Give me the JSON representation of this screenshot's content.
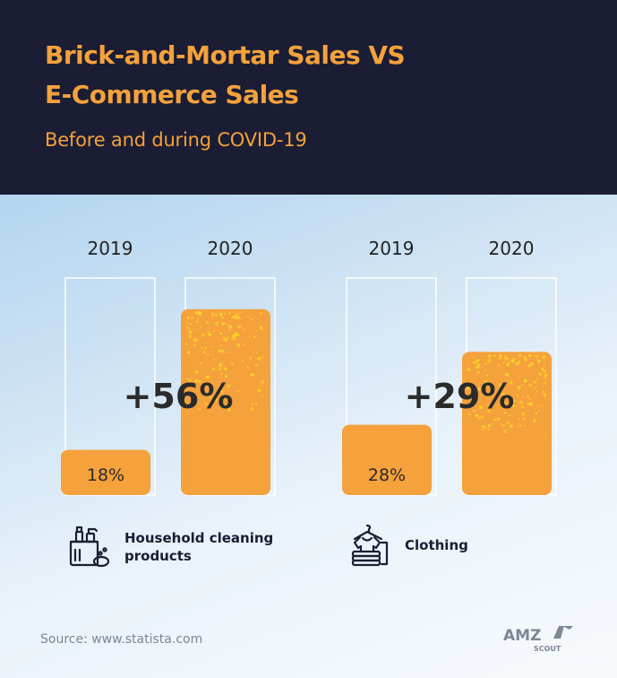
{
  "header": {
    "title_line1": "Brick-and-Mortar Sales VS",
    "title_line2": "E-Commerce Sales",
    "subtitle": "Before and during COVID-19"
  },
  "chart_data": [
    {
      "type": "bar",
      "categories": [
        "2019",
        "2020"
      ],
      "values": [
        18,
        74
      ],
      "value_labels": [
        "18%",
        ""
      ],
      "change_label": "+56%",
      "group_label": "Household cleaning products",
      "ylim": [
        0,
        100
      ]
    },
    {
      "type": "bar",
      "categories": [
        "2019",
        "2020"
      ],
      "values": [
        28,
        57
      ],
      "value_labels": [
        "28%",
        ""
      ],
      "change_label": "+29%",
      "group_label": "Clothing",
      "ylim": [
        0,
        100
      ]
    }
  ],
  "categories": {
    "household_line1": "Household cleaning",
    "household_line2": "products",
    "clothing": "Clothing"
  },
  "icons": {
    "household": "cleaning-products-icon",
    "clothing": "clothing-stack-icon"
  },
  "footer": {
    "source": "Source: www.statista.com",
    "logo_top": "AMZ",
    "logo_bottom": "SCOUT"
  },
  "colors": {
    "header_bg": "#1a1d33",
    "accent": "#f5a13c",
    "bar": "#f5a13c",
    "bar_dots": "#fcd12a",
    "text_dark": "#2b2b2b"
  }
}
